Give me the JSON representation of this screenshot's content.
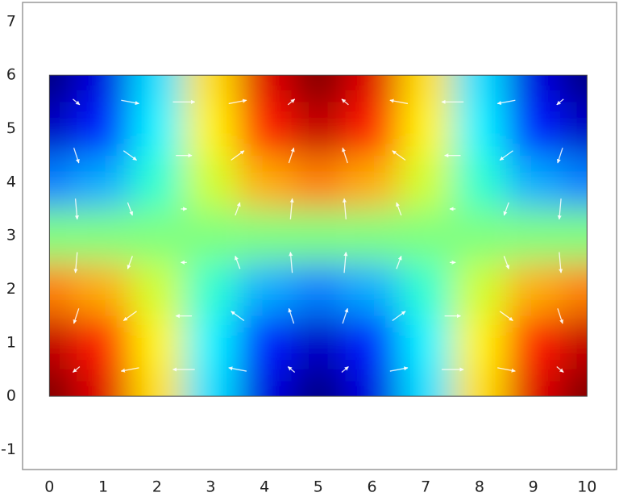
{
  "chart_data": {
    "type": "heatmap_vector",
    "colormap": "jet",
    "zlim": [
      -1,
      1
    ],
    "x": [
      0,
      1,
      2,
      3,
      4,
      5,
      6,
      7,
      8,
      9,
      10
    ],
    "y": [
      0,
      1,
      2,
      3,
      4,
      5,
      6
    ],
    "z": [
      [
        1,
        0.81,
        0.31,
        -0.31,
        -0.81,
        -1,
        -0.81,
        -0.31,
        0.31,
        0.81,
        1
      ],
      [
        0.87,
        0.7,
        0.27,
        -0.27,
        -0.7,
        -0.87,
        -0.7,
        -0.27,
        0.27,
        0.7,
        0.87
      ],
      [
        0.5,
        0.41,
        0.16,
        -0.16,
        -0.41,
        -0.5,
        -0.41,
        -0.16,
        0.16,
        0.41,
        0.5
      ],
      [
        0,
        0,
        0,
        0,
        0,
        0,
        0,
        0,
        0,
        0,
        0
      ],
      [
        -0.5,
        -0.41,
        -0.16,
        0.16,
        0.41,
        0.5,
        0.41,
        0.16,
        -0.16,
        -0.41,
        -0.5
      ],
      [
        -0.87,
        -0.7,
        -0.27,
        0.27,
        0.7,
        0.87,
        0.7,
        0.27,
        -0.27,
        -0.7,
        -0.87
      ],
      [
        -1,
        -0.81,
        -0.31,
        0.31,
        0.81,
        1,
        0.81,
        0.31,
        -0.31,
        -0.81,
        -1
      ]
    ],
    "arrow_x": [
      0.5,
      1.5,
      2.5,
      3.5,
      4.5,
      5.5,
      6.5,
      7.5,
      8.5,
      9.5
    ],
    "arrow_y": [
      0.5,
      1.5,
      2.5,
      3.5,
      4.5,
      5.5
    ],
    "arrow_color": "#ffffff",
    "u": [
      [
        -0.3,
        -0.79,
        -0.97,
        -0.79,
        -0.3,
        0.3,
        0.79,
        0.97,
        0.79,
        0.3
      ],
      [
        -0.22,
        -0.58,
        -0.71,
        -0.58,
        -0.22,
        0.22,
        0.58,
        0.71,
        0.58,
        0.22
      ],
      [
        -0.08,
        -0.21,
        -0.26,
        -0.21,
        -0.08,
        0.08,
        0.21,
        0.26,
        0.21,
        0.08
      ],
      [
        0.08,
        0.21,
        0.26,
        0.21,
        0.08,
        -0.08,
        -0.21,
        -0.26,
        -0.21,
        -0.08
      ],
      [
        0.22,
        0.58,
        0.71,
        0.58,
        0.22,
        -0.22,
        -0.58,
        -0.71,
        -0.58,
        -0.22
      ],
      [
        0.3,
        0.79,
        0.97,
        0.79,
        0.3,
        -0.3,
        -0.79,
        -0.97,
        -0.79,
        -0.3
      ]
    ],
    "v": [
      [
        -0.25,
        -0.15,
        0,
        0.15,
        0.25,
        0.25,
        0.15,
        0,
        -0.15,
        -0.25
      ],
      [
        -0.67,
        -0.42,
        0,
        0.42,
        0.67,
        0.67,
        0.42,
        0,
        -0.42,
        -0.67
      ],
      [
        -0.92,
        -0.57,
        0,
        0.57,
        0.92,
        0.92,
        0.57,
        0,
        -0.57,
        -0.92
      ],
      [
        -0.92,
        -0.57,
        0,
        0.57,
        0.92,
        0.92,
        0.57,
        0,
        -0.57,
        -0.92
      ],
      [
        -0.67,
        -0.42,
        0,
        0.42,
        0.67,
        0.67,
        0.42,
        0,
        -0.42,
        -0.67
      ],
      [
        -0.25,
        -0.15,
        0,
        0.15,
        0.25,
        0.25,
        0.15,
        0,
        -0.15,
        -0.25
      ]
    ],
    "xlim": [
      -0.5,
      10.55
    ],
    "ylim": [
      -1.37,
      7.36
    ],
    "xticks": [
      0,
      1,
      2,
      3,
      4,
      5,
      6,
      7,
      8,
      9,
      10
    ],
    "yticks": [
      -1,
      0,
      1,
      2,
      3,
      4,
      5,
      6,
      7
    ],
    "grid": false
  }
}
